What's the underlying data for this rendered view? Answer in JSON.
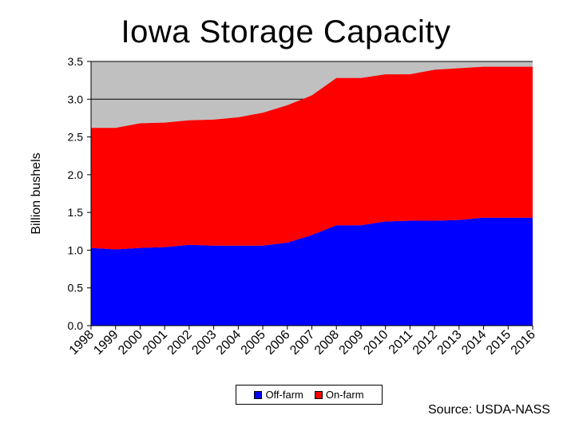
{
  "chart_data": {
    "type": "area",
    "stacked": true,
    "title": "Iowa Storage Capacity",
    "ylabel": "Billion bushels",
    "xlabel": "",
    "ylim": [
      0,
      3.5
    ],
    "yticks": [
      "0.0",
      "0.5",
      "1.0",
      "1.5",
      "2.0",
      "2.5",
      "3.0",
      "3.5"
    ],
    "ytick_values": [
      0,
      0.5,
      1.0,
      1.5,
      2.0,
      2.5,
      3.0,
      3.5
    ],
    "categories": [
      "1998",
      "1999",
      "2000",
      "2001",
      "2002",
      "2003",
      "2004",
      "2005",
      "2006",
      "2007",
      "2008",
      "2009",
      "2010",
      "2011",
      "2012",
      "2013",
      "2014",
      "2015",
      "2016"
    ],
    "series": [
      {
        "name": "Off-farm",
        "color": "#0000ff",
        "values": [
          1.03,
          1.01,
          1.03,
          1.04,
          1.07,
          1.06,
          1.06,
          1.06,
          1.1,
          1.2,
          1.33,
          1.33,
          1.38,
          1.39,
          1.39,
          1.4,
          1.43,
          1.43,
          1.43
        ]
      },
      {
        "name": "On-farm",
        "color": "#ff0000",
        "values": [
          1.59,
          1.61,
          1.65,
          1.65,
          1.65,
          1.67,
          1.7,
          1.76,
          1.82,
          1.85,
          1.95,
          1.95,
          1.95,
          1.94,
          2.0,
          2.01,
          2.0,
          2.0,
          2.0
        ]
      }
    ],
    "grid": "horizontal",
    "legend_position": "bottom"
  },
  "source": "Source: USDA-NASS",
  "colors": {
    "plot_background": "#c0c0c0",
    "gridline": "#000000"
  }
}
